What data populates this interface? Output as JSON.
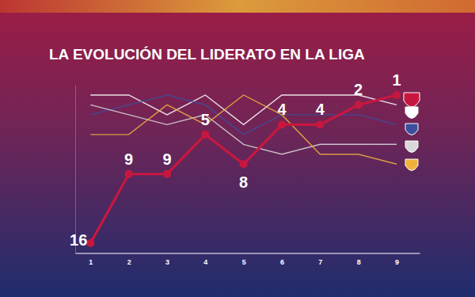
{
  "chart_data": {
    "type": "line",
    "title": "LA EVOLUCIÓN DEL LIDERATO EN LA LIGA",
    "x": [
      1,
      2,
      3,
      4,
      5,
      6,
      7,
      8,
      9
    ],
    "xlim": [
      0.6,
      9.6
    ],
    "xticks": [
      1,
      2,
      3,
      4,
      5,
      6,
      7,
      8,
      9
    ],
    "ylim": [
      17,
      0
    ],
    "yticks": [],
    "tick_labels": "x",
    "grid": false,
    "series": [
      {
        "color": "#ffffff",
        "values": [
          1,
          1,
          3,
          1,
          4,
          1,
          1,
          1,
          2
        ],
        "marker": "none"
      },
      {
        "color": "#3b4f9e",
        "values": [
          3,
          2,
          1,
          2,
          5,
          3,
          3,
          3,
          4
        ],
        "marker": "none"
      },
      {
        "color": "#d9d9d9",
        "values": [
          2,
          3,
          4,
          3,
          6,
          7,
          6,
          6,
          6
        ],
        "marker": "none"
      },
      {
        "color": "#f0b13c",
        "values": [
          5,
          5,
          2,
          4,
          1,
          3,
          7,
          7,
          8
        ],
        "marker": "none"
      },
      {
        "color": "#c8173f",
        "values": [
          16,
          9,
          9,
          5,
          8,
          4,
          4,
          2,
          1
        ],
        "marker": "circle",
        "data_labels": true
      }
    ]
  }
}
